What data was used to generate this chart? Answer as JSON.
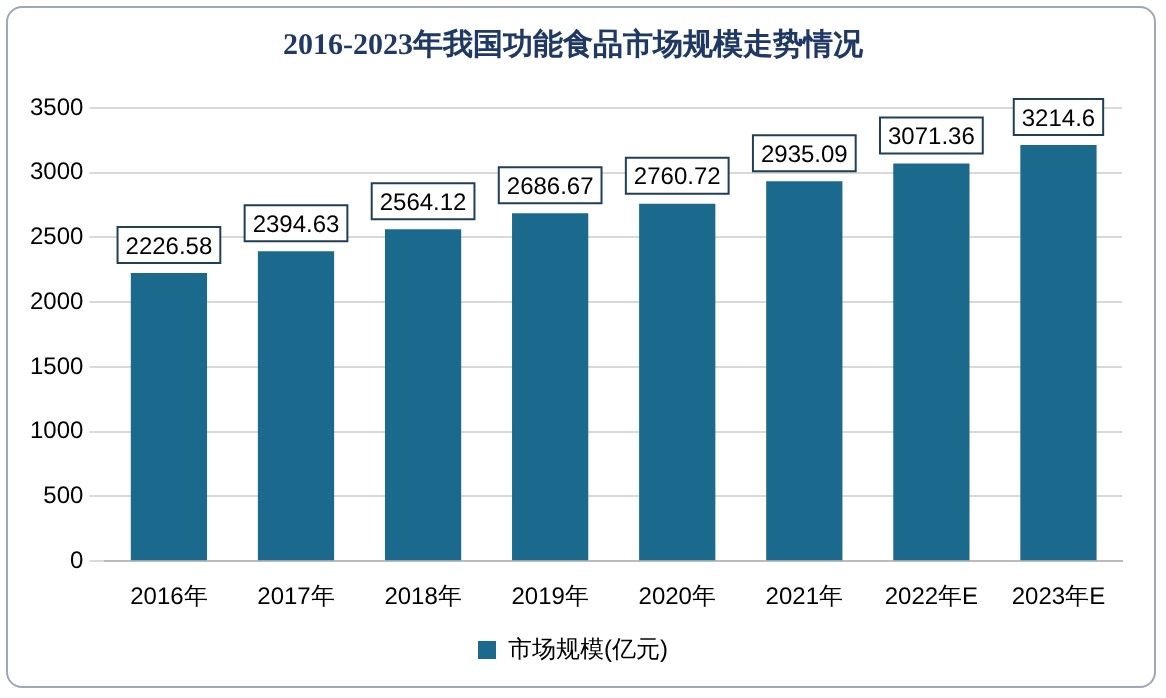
{
  "chart_data": {
    "type": "bar",
    "title": "2016-2023年我国功能食品市场规模走势情况",
    "categories": [
      "2016年",
      "2017年",
      "2018年",
      "2019年",
      "2020年",
      "2021年",
      "2022年E",
      "2023年E"
    ],
    "series": [
      {
        "name": "市场规模(亿元)",
        "color": "#1b6a8e",
        "values": [
          2226.58,
          2394.63,
          2564.12,
          2686.67,
          2760.72,
          2935.09,
          3071.36,
          3214.6
        ]
      }
    ],
    "ylim": [
      0,
      3500
    ],
    "yticks": [
      0,
      500,
      1000,
      1500,
      2000,
      2500,
      3000,
      3500
    ],
    "grid": "y",
    "legend": "bottom",
    "data_labels": true
  }
}
